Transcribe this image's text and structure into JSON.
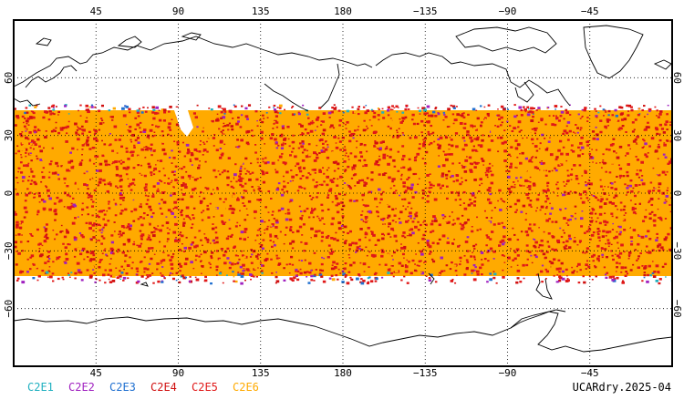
{
  "map": {
    "credit": "UCARdry.2025-04",
    "lon_ticks": [
      "45",
      "90",
      "135",
      "180",
      "−135",
      "−90",
      "−45"
    ],
    "lat_ticks": [
      "60",
      "30",
      "0",
      "−30",
      "−60"
    ],
    "lon_tick_values": [
      45,
      90,
      135,
      180,
      225,
      270,
      315
    ],
    "lat_tick_values": [
      60,
      30,
      0,
      -30,
      -60
    ],
    "lon_range": [
      0,
      360
    ],
    "lat_range": [
      -90,
      90
    ],
    "coverage_lat_range": [
      -45,
      45
    ],
    "grid": "dotted",
    "legend_placement": "bottom-left",
    "legend": [
      {
        "label": "C2E1",
        "color": "#20b0c0"
      },
      {
        "label": "C2E2",
        "color": "#a020c0"
      },
      {
        "label": "C2E3",
        "color": "#2070d0"
      },
      {
        "label": "C2E4",
        "color": "#d01010"
      },
      {
        "label": "C2E5",
        "color": "#e01818"
      },
      {
        "label": "C2E6",
        "color": "#ffaa00"
      }
    ]
  }
}
